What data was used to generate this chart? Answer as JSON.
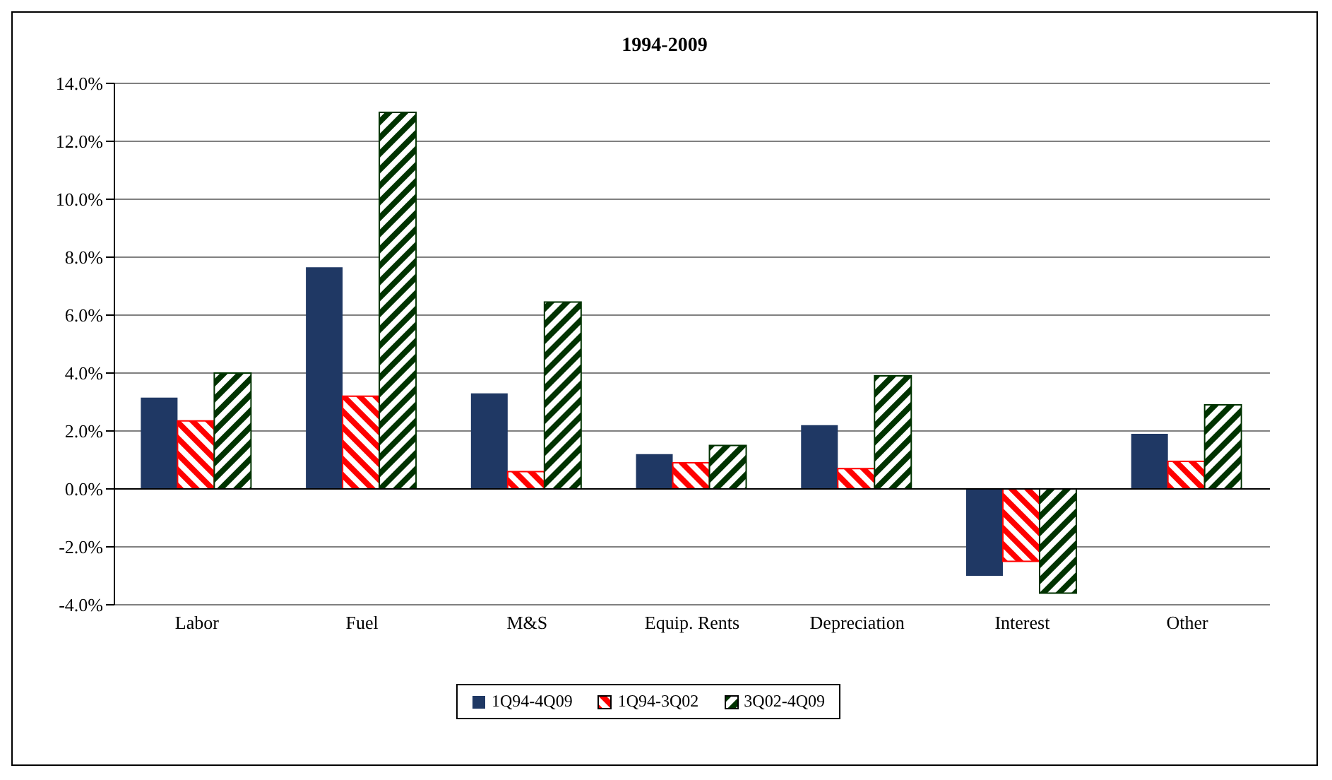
{
  "chart_data": {
    "type": "bar",
    "title": "1994-2009",
    "categories": [
      "Labor",
      "Fuel",
      "M&S",
      "Equip. Rents",
      "Depreciation",
      "Interest",
      "Other"
    ],
    "series": [
      {
        "name": "1Q94-4Q09",
        "color": "#1f3864",
        "values": [
          3.15,
          7.65,
          3.3,
          1.2,
          2.2,
          -3.0,
          1.9
        ]
      },
      {
        "name": "1Q94-3Q02",
        "color": "#ff0000",
        "values": [
          2.35,
          3.2,
          0.6,
          0.9,
          0.7,
          -2.5,
          0.95
        ]
      },
      {
        "name": "3Q02-4Q09",
        "color": "#003300",
        "values": [
          4.0,
          13.0,
          6.45,
          1.5,
          3.9,
          -3.6,
          2.9
        ]
      }
    ],
    "ylim": [
      -4,
      14
    ],
    "yticks": [
      {
        "value": -4,
        "label": "-4.0%"
      },
      {
        "value": -2,
        "label": "-2.0%"
      },
      {
        "value": 0,
        "label": "0.0%"
      },
      {
        "value": 2,
        "label": "2.0%"
      },
      {
        "value": 4,
        "label": "4.0%"
      },
      {
        "value": 6,
        "label": "6.0%"
      },
      {
        "value": 8,
        "label": "8.0%"
      },
      {
        "value": 10,
        "label": "10.0%"
      },
      {
        "value": 12,
        "label": "12.0%"
      },
      {
        "value": 14,
        "label": "14.0%"
      }
    ],
    "grid": "y",
    "legend": "bottom"
  }
}
